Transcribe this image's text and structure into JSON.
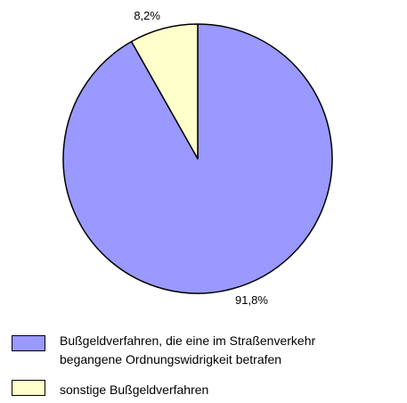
{
  "chart_data": {
    "type": "pie",
    "categories": [
      "Bußgeldverfahren, die eine im Straßenverkehr\nbegangene Ordnungswidrigkeit betrafen",
      "sonstige Bußgeldverfahren"
    ],
    "values": [
      91.8,
      8.2
    ],
    "value_labels": [
      "91,8%",
      "8,2%"
    ],
    "colors": [
      "#9999ff",
      "#ffffcc"
    ],
    "legend": "bottom"
  }
}
